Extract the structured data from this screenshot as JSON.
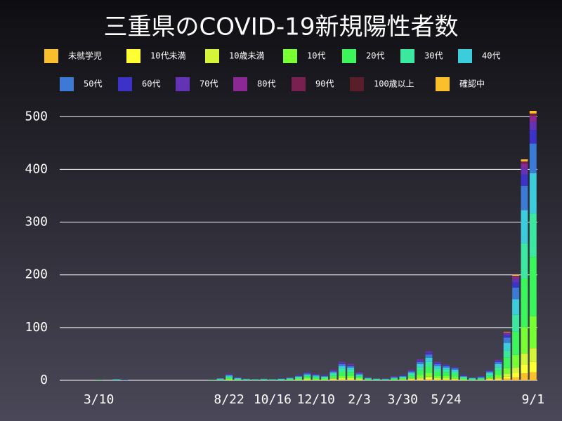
{
  "chart_data": {
    "type": "stacked_bar",
    "title": "三重県のCOVID-19新規陽性者数",
    "categories": [
      null,
      null,
      null,
      null,
      "3/10",
      null,
      null,
      null,
      null,
      null,
      null,
      null,
      null,
      null,
      null,
      null,
      null,
      null,
      null,
      "8/22",
      null,
      null,
      null,
      null,
      "10/16",
      null,
      null,
      null,
      null,
      "12/10",
      null,
      null,
      null,
      null,
      "2/3",
      null,
      null,
      null,
      null,
      "3/30",
      null,
      null,
      null,
      null,
      "5/24",
      null,
      null,
      null,
      null,
      null,
      null,
      null,
      null,
      null,
      "9/1"
    ],
    "ylim": [
      0,
      515
    ],
    "yticks": [
      0,
      100,
      200,
      300,
      400,
      500
    ],
    "grid": true,
    "series": [
      {
        "name": "未就学児",
        "color": "#fbbf2b",
        "values": [
          0,
          0,
          0,
          0,
          0,
          0,
          0,
          0,
          0,
          0,
          0,
          0,
          0,
          0,
          0,
          0,
          0,
          0,
          0,
          0,
          0,
          0,
          0,
          0,
          0,
          0,
          0,
          0,
          0,
          0,
          0,
          1,
          1,
          1,
          0,
          0,
          0,
          0,
          0,
          0,
          1,
          1,
          2,
          1,
          1,
          1,
          0,
          0,
          0,
          1,
          1,
          3,
          6,
          13,
          15
        ]
      },
      {
        "name": "10代未満",
        "color": "#ffff33",
        "values": [
          0,
          0,
          0,
          0,
          0,
          0,
          0,
          0,
          0,
          0,
          0,
          0,
          0,
          0,
          0,
          0,
          0,
          0,
          0,
          0,
          0,
          0,
          0,
          0,
          0,
          0,
          0,
          0,
          1,
          0,
          0,
          1,
          1,
          1,
          1,
          0,
          0,
          0,
          0,
          0,
          1,
          2,
          2,
          1,
          1,
          1,
          0,
          0,
          0,
          1,
          2,
          4,
          8,
          17,
          20
        ]
      },
      {
        "name": "10歳未満",
        "color": "#d4f53a",
        "values": [
          0,
          0,
          0,
          0,
          0,
          0,
          0,
          0,
          0,
          0,
          0,
          0,
          0,
          0,
          0,
          0,
          0,
          0,
          0,
          1,
          0,
          0,
          0,
          0,
          0,
          0,
          0,
          1,
          1,
          1,
          1,
          1,
          2,
          2,
          1,
          0,
          0,
          0,
          0,
          1,
          1,
          2,
          3,
          2,
          2,
          1,
          1,
          0,
          0,
          1,
          2,
          5,
          10,
          21,
          26
        ]
      },
      {
        "name": "10代",
        "color": "#77ff33",
        "values": [
          0,
          0,
          0,
          0,
          0,
          0,
          0,
          0,
          0,
          0,
          0,
          0,
          0,
          0,
          0,
          0,
          0,
          0,
          0,
          1,
          1,
          0,
          0,
          0,
          0,
          0,
          1,
          1,
          2,
          1,
          1,
          2,
          4,
          4,
          2,
          1,
          0,
          0,
          1,
          1,
          2,
          5,
          7,
          4,
          4,
          3,
          1,
          1,
          1,
          2,
          5,
          11,
          24,
          50,
          61
        ]
      },
      {
        "name": "20代",
        "color": "#3cf55a",
        "values": [
          0,
          0,
          0,
          0,
          1,
          0,
          0,
          0,
          0,
          0,
          0,
          0,
          0,
          0,
          0,
          0,
          0,
          1,
          1,
          3,
          1,
          1,
          1,
          1,
          1,
          1,
          1,
          2,
          3,
          3,
          2,
          4,
          8,
          7,
          3,
          1,
          1,
          1,
          2,
          2,
          4,
          9,
          12,
          8,
          7,
          6,
          2,
          1,
          2,
          4,
          9,
          20,
          44,
          92,
          112
        ]
      },
      {
        "name": "30代",
        "color": "#3ce8a0",
        "values": [
          0,
          0,
          0,
          0,
          0,
          0,
          1,
          0,
          0,
          0,
          0,
          0,
          0,
          0,
          0,
          0,
          0,
          0,
          1,
          2,
          1,
          1,
          0,
          1,
          0,
          1,
          1,
          2,
          2,
          2,
          2,
          3,
          6,
          5,
          2,
          1,
          1,
          1,
          1,
          2,
          3,
          6,
          9,
          6,
          5,
          4,
          2,
          1,
          1,
          3,
          6,
          14,
          32,
          67,
          82
        ]
      },
      {
        "name": "40代",
        "color": "#3cccdc",
        "values": [
          0,
          0,
          0,
          0,
          0,
          0,
          1,
          0,
          0,
          0,
          0,
          0,
          0,
          0,
          0,
          0,
          0,
          0,
          1,
          2,
          1,
          0,
          1,
          0,
          1,
          1,
          1,
          1,
          2,
          2,
          1,
          3,
          5,
          4,
          2,
          1,
          1,
          0,
          1,
          1,
          3,
          6,
          8,
          5,
          4,
          4,
          1,
          1,
          1,
          3,
          6,
          14,
          30,
          63,
          77
        ]
      },
      {
        "name": "50代",
        "color": "#3c7ad6",
        "values": [
          0,
          0,
          0,
          0,
          0,
          0,
          0,
          1,
          0,
          0,
          0,
          0,
          0,
          0,
          0,
          0,
          0,
          0,
          1,
          1,
          1,
          1,
          0,
          1,
          0,
          0,
          1,
          1,
          2,
          1,
          1,
          2,
          4,
          3,
          2,
          1,
          0,
          1,
          1,
          1,
          2,
          4,
          6,
          4,
          3,
          3,
          1,
          1,
          1,
          2,
          4,
          10,
          22,
          46,
          56
        ]
      },
      {
        "name": "60代",
        "color": "#3c32c8",
        "values": [
          0,
          0,
          0,
          0,
          0,
          0,
          0,
          0,
          0,
          0,
          0,
          0,
          0,
          0,
          0,
          0,
          0,
          0,
          0,
          1,
          1,
          0,
          0,
          0,
          0,
          1,
          0,
          1,
          1,
          1,
          1,
          1,
          2,
          2,
          1,
          0,
          0,
          0,
          1,
          1,
          1,
          2,
          3,
          2,
          2,
          1,
          1,
          0,
          1,
          1,
          2,
          4,
          10,
          21,
          26
        ]
      },
      {
        "name": "70代",
        "color": "#6432b4",
        "values": [
          0,
          0,
          0,
          0,
          0,
          0,
          0,
          0,
          0,
          0,
          0,
          0,
          0,
          0,
          0,
          0,
          0,
          0,
          0,
          1,
          0,
          0,
          0,
          0,
          0,
          0,
          0,
          1,
          1,
          1,
          1,
          1,
          1,
          1,
          1,
          0,
          0,
          1,
          0,
          1,
          1,
          2,
          2,
          1,
          1,
          1,
          1,
          0,
          1,
          1,
          1,
          3,
          6,
          13,
          15
        ]
      },
      {
        "name": "80代",
        "color": "#8c2896",
        "values": [
          0,
          0,
          0,
          0,
          0,
          0,
          0,
          0,
          0,
          0,
          0,
          0,
          0,
          0,
          0,
          0,
          0,
          0,
          0,
          0,
          0,
          0,
          0,
          0,
          0,
          0,
          0,
          0,
          0,
          0,
          0,
          1,
          1,
          1,
          1,
          0,
          0,
          0,
          1,
          0,
          1,
          1,
          1,
          1,
          0,
          0,
          0,
          0,
          0,
          0,
          1,
          2,
          4,
          8,
          10
        ]
      },
      {
        "name": "90代",
        "color": "#7a2050",
        "values": [
          0,
          0,
          0,
          0,
          0,
          0,
          0,
          0,
          0,
          0,
          0,
          0,
          0,
          0,
          0,
          0,
          0,
          0,
          0,
          0,
          0,
          0,
          0,
          0,
          0,
          0,
          0,
          0,
          0,
          0,
          0,
          0,
          0,
          0,
          0,
          0,
          0,
          0,
          0,
          0,
          0,
          0,
          0,
          0,
          0,
          0,
          0,
          0,
          0,
          0,
          0,
          1,
          2,
          4,
          5
        ]
      },
      {
        "name": "100歳以上",
        "color": "#5a1e28",
        "values": [
          0,
          0,
          0,
          0,
          0,
          0,
          0,
          0,
          0,
          0,
          0,
          0,
          0,
          0,
          0,
          0,
          0,
          0,
          0,
          0,
          0,
          0,
          0,
          0,
          0,
          0,
          0,
          0,
          0,
          0,
          0,
          0,
          0,
          0,
          0,
          0,
          0,
          0,
          0,
          0,
          0,
          0,
          0,
          0,
          0,
          0,
          0,
          0,
          0,
          0,
          0,
          0,
          0,
          0,
          1
        ]
      },
      {
        "name": "確認中",
        "color": "#fbbf2b",
        "values": [
          0,
          0,
          0,
          0,
          0,
          0,
          0,
          0,
          0,
          0,
          0,
          0,
          0,
          0,
          0,
          0,
          0,
          0,
          0,
          0,
          0,
          0,
          0,
          0,
          0,
          0,
          0,
          0,
          0,
          0,
          0,
          0,
          0,
          0,
          0,
          0,
          0,
          0,
          0,
          0,
          0,
          0,
          0,
          0,
          0,
          0,
          0,
          0,
          0,
          0,
          0,
          1,
          2,
          4,
          5
        ]
      }
    ]
  }
}
